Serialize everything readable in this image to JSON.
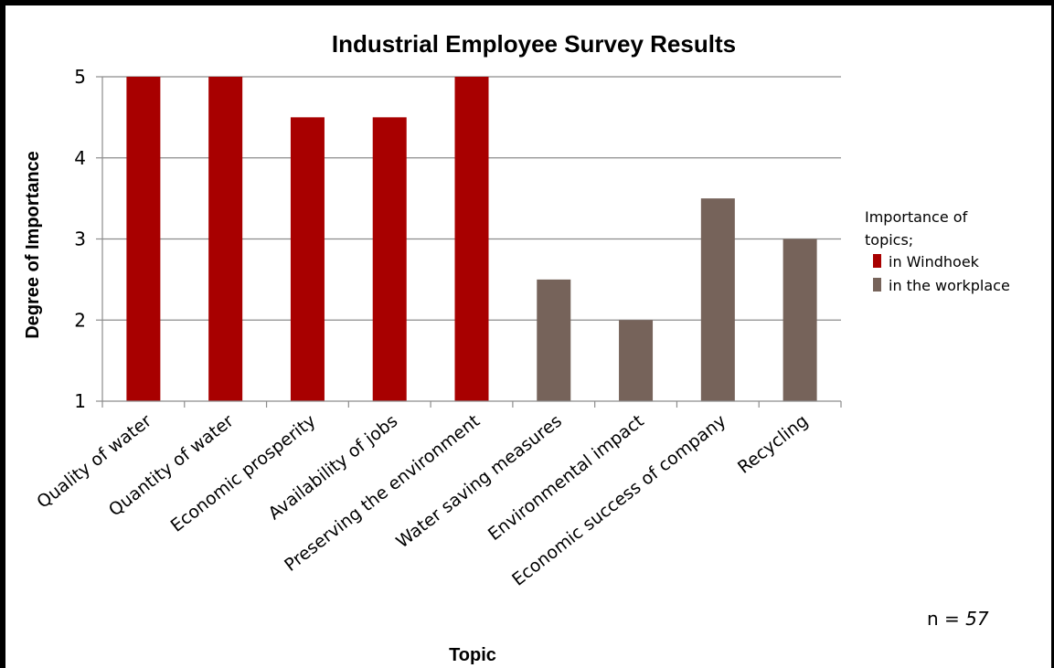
{
  "chart_data": {
    "type": "bar",
    "title": "Industrial Employee Survey Results",
    "xlabel": "Topic",
    "ylabel": "Degree of Importance",
    "ylim": [
      1,
      5
    ],
    "yticks": [
      1,
      2,
      3,
      4,
      5
    ],
    "grid": true,
    "legend_title": "Importance of topics;",
    "legend_position": "right",
    "categories": [
      "Quality of water",
      "Quantity of water",
      "Economic prosperity",
      "Availability of jobs",
      "Preserving the environment",
      "Water saving measures",
      "Environmental impact",
      "Economic success of company",
      "Recycling"
    ],
    "series": [
      {
        "name": "in Windhoek",
        "color": "#a80000",
        "values": [
          5,
          5,
          4.5,
          4.5,
          5,
          null,
          null,
          null,
          null
        ]
      },
      {
        "name": "in the workplace",
        "color": "#76635a",
        "values": [
          null,
          null,
          null,
          null,
          null,
          2.5,
          2,
          3.5,
          3
        ]
      }
    ],
    "annotation": {
      "prefix": "n = ",
      "value": "57"
    }
  }
}
